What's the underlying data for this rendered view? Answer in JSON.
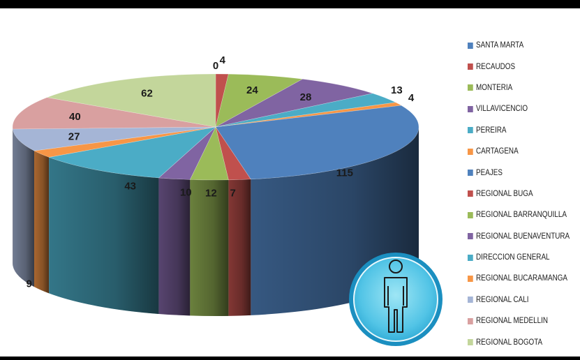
{
  "chart_data": {
    "type": "pie",
    "title": "",
    "categories": [
      "SANTA MARTA",
      "RECAUDOS",
      "MONTERIA",
      "VILLAVICENCIO",
      "PEREIRA",
      "CARTAGENA",
      "PEAJES",
      "REGIONAL BUGA",
      "REGIONAL BARRANQUILLA",
      "REGIONAL BUENAVENTURA",
      "DIRECCION GENERAL",
      "REGIONAL BUCARAMANGA",
      "REGIONAL CALI",
      "REGIONAL MEDELLIN",
      "REGIONAL BOGOTA"
    ],
    "values": [
      0,
      4,
      24,
      28,
      13,
      4,
      115,
      7,
      12,
      10,
      43,
      9,
      27,
      40,
      62
    ],
    "colors": [
      "#4f81bd",
      "#c0504d",
      "#9bbb59",
      "#8064a2",
      "#4bacc6",
      "#f79646",
      "#4f81bd",
      "#c0504d",
      "#9bbb59",
      "#8064a2",
      "#4bacc6",
      "#f79646",
      "#a5b5d6",
      "#d9a0a0",
      "#c3d69b"
    ],
    "legend_position": "right",
    "style": "3d-pie"
  },
  "badge": {
    "icon": "person-icon"
  }
}
